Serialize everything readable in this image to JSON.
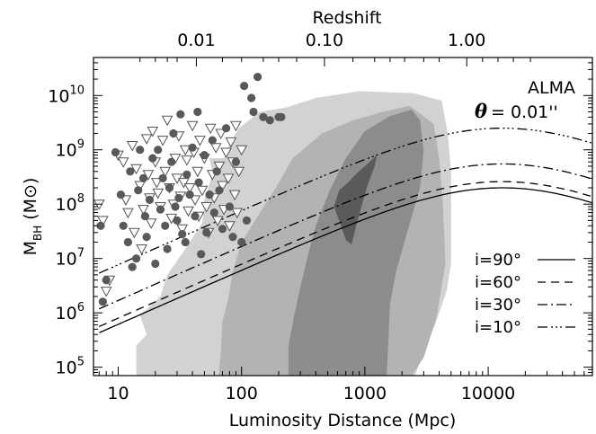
{
  "chart_data": {
    "type": "scatter",
    "title": "",
    "xlabel": "Luminosity Distance (Mpc)",
    "ylabel_main": "M",
    "ylabel_sub": "BH",
    "ylabel_unit": "(M⊙)",
    "top_axis_label": "Redshift",
    "xscale": "log",
    "yscale": "log",
    "xlim": [
      6.3,
      70000
    ],
    "ylim": [
      70000,
      50000000000
    ],
    "x_ticks": [
      {
        "value": 10,
        "label": "10"
      },
      {
        "value": 100,
        "label": "100"
      },
      {
        "value": 1000,
        "label": "1000"
      },
      {
        "value": 10000,
        "label": "10000"
      }
    ],
    "y_ticks": [
      {
        "value": 100000,
        "base": "10",
        "exp": "5"
      },
      {
        "value": 1000000,
        "base": "10",
        "exp": "6"
      },
      {
        "value": 10000000,
        "base": "10",
        "exp": "7"
      },
      {
        "value": 100000000,
        "base": "10",
        "exp": "8"
      },
      {
        "value": 1000000000,
        "base": "10",
        "exp": "9"
      },
      {
        "value": 10000000000,
        "base": "10",
        "exp": "10"
      }
    ],
    "top_ticks": [
      {
        "x_value": 43,
        "label": "0.01"
      },
      {
        "x_value": 470,
        "label": "0.10"
      },
      {
        "x_value": 6700,
        "label": "1.00"
      }
    ],
    "annotations": {
      "instrument": "ALMA",
      "theta_symbol": "θ",
      "theta_value": "= 0.01''"
    },
    "contours": [
      {
        "level": "outer",
        "color": "#d2d2d2",
        "polygon": [
          [
            14,
            60000
          ],
          [
            14,
            250000
          ],
          [
            17,
            400000
          ],
          [
            15,
            900000
          ],
          [
            22,
            2000000
          ],
          [
            25,
            5000000
          ],
          [
            35,
            15000000
          ],
          [
            48,
            45000000
          ],
          [
            50,
            120000000
          ],
          [
            58,
            350000000
          ],
          [
            55,
            700000000
          ],
          [
            72,
            700000000
          ],
          [
            80,
            1300000000
          ],
          [
            95,
            2500000000
          ],
          [
            140,
            5000000000
          ],
          [
            230,
            6000000000
          ],
          [
            400,
            9000000000
          ],
          [
            900,
            12000000000
          ],
          [
            2500,
            11000000000
          ],
          [
            4200,
            8000000000
          ],
          [
            4700,
            2000000000
          ],
          [
            5000,
            400000000
          ],
          [
            5000,
            8000000
          ],
          [
            4600,
            2500000
          ],
          [
            3700,
            600000
          ],
          [
            3000,
            200000
          ],
          [
            2500,
            60000
          ]
        ]
      },
      {
        "level": "mid",
        "color": "#b3b3b3",
        "polygon": [
          [
            65,
            60000
          ],
          [
            68,
            200000
          ],
          [
            70,
            700000
          ],
          [
            78,
            1800000
          ],
          [
            85,
            6000000
          ],
          [
            100,
            20000000
          ],
          [
            135,
            60000000
          ],
          [
            190,
            200000000
          ],
          [
            260,
            700000000
          ],
          [
            450,
            2000000000
          ],
          [
            800,
            3500000000
          ],
          [
            1400,
            5000000000
          ],
          [
            2300,
            6500000000
          ],
          [
            3600,
            3000000000
          ],
          [
            4000,
            700000000
          ],
          [
            4300,
            100000000
          ],
          [
            4500,
            8000000
          ],
          [
            3800,
            800000
          ],
          [
            3000,
            150000
          ],
          [
            2300,
            60000
          ]
        ]
      },
      {
        "level": "inner",
        "color": "#8c8c8c",
        "polygon": [
          [
            240,
            60000
          ],
          [
            240,
            250000
          ],
          [
            270,
            1000000
          ],
          [
            300,
            3000000
          ],
          [
            340,
            10000000
          ],
          [
            400,
            40000000
          ],
          [
            520,
            180000000
          ],
          [
            700,
            700000000
          ],
          [
            1000,
            2200000000
          ],
          [
            1600,
            4200000000
          ],
          [
            2400,
            5500000000
          ],
          [
            2800,
            3500000000
          ],
          [
            3000,
            1000000000
          ],
          [
            2800,
            200000000
          ],
          [
            2200,
            30000000
          ],
          [
            1800,
            6000000
          ],
          [
            1600,
            1500000
          ],
          [
            1550,
            300000
          ],
          [
            1500,
            60000
          ]
        ]
      },
      {
        "level": "core",
        "color": "#5a5a5a",
        "polygon": [
          [
            560,
            90000000
          ],
          [
            630,
            45000000
          ],
          [
            700,
            22000000
          ],
          [
            780,
            18000000
          ],
          [
            850,
            40000000
          ],
          [
            950,
            100000000
          ],
          [
            1050,
            220000000
          ],
          [
            1200,
            500000000
          ],
          [
            1250,
            800000000
          ],
          [
            1050,
            550000000
          ],
          [
            870,
            380000000
          ],
          [
            730,
            250000000
          ],
          [
            620,
            180000000
          ]
        ]
      }
    ],
    "series": [
      {
        "name": "i=90°",
        "dash": "",
        "norm": 200000000
      },
      {
        "name": "i=60°",
        "dash": "9 6",
        "norm": 260000000
      },
      {
        "name": "i=30°",
        "dash": "11 4 2 4",
        "norm": 550000000
      },
      {
        "name": "i=10°",
        "dash": "11 4 2 3 2 3 2 4",
        "norm": 2500000000
      }
    ],
    "curve_peak_x": 13000,
    "curve_x_range": [
      7,
      70000
    ],
    "points_filled": [
      [
        7.2,
        40000000
      ],
      [
        7.5,
        1600000
      ],
      [
        8,
        4000000
      ],
      [
        9.5,
        900000000
      ],
      [
        10.5,
        150000000
      ],
      [
        11,
        40000000
      ],
      [
        12,
        20000000
      ],
      [
        12.5,
        400000000
      ],
      [
        13,
        7000000
      ],
      [
        14,
        10000000
      ],
      [
        14.5,
        180000000
      ],
      [
        15,
        1000000000
      ],
      [
        16,
        300000000
      ],
      [
        16.5,
        60000000
      ],
      [
        17,
        25000000
      ],
      [
        18,
        120000000
      ],
      [
        19,
        700000000
      ],
      [
        20,
        8000000
      ],
      [
        21,
        1000000000
      ],
      [
        22,
        80000000
      ],
      [
        23,
        300000000
      ],
      [
        24,
        40000000
      ],
      [
        25,
        15000000
      ],
      [
        26,
        200000000
      ],
      [
        27,
        600000000
      ],
      [
        28,
        2000000000
      ],
      [
        29,
        90000000
      ],
      [
        30,
        50000000
      ],
      [
        31,
        130000000
      ],
      [
        32,
        4500000000
      ],
      [
        33,
        28000000
      ],
      [
        35,
        20000000
      ],
      [
        36,
        350000000
      ],
      [
        38,
        150000000
      ],
      [
        40,
        1100000000
      ],
      [
        42,
        60000000
      ],
      [
        44,
        5000000000
      ],
      [
        45,
        250000000
      ],
      [
        47,
        12000000
      ],
      [
        50,
        800000000
      ],
      [
        52,
        30000000
      ],
      [
        55,
        150000000
      ],
      [
        58,
        1500000000
      ],
      [
        60,
        70000000
      ],
      [
        63,
        400000000
      ],
      [
        66,
        180000000
      ],
      [
        70,
        35000000
      ],
      [
        75,
        2500000000
      ],
      [
        80,
        90000000
      ],
      [
        85,
        25000000
      ],
      [
        90,
        600000000
      ],
      [
        100,
        20000000
      ],
      [
        105,
        15000000000
      ],
      [
        110,
        50000000
      ],
      [
        120,
        9000000000
      ],
      [
        125,
        5000000000
      ],
      [
        135,
        22000000000
      ],
      [
        150,
        4000000000
      ],
      [
        170,
        3500000000
      ],
      [
        200,
        4000000000
      ],
      [
        210,
        4000000000
      ]
    ],
    "points_open": [
      [
        7,
        100000000
      ],
      [
        7.5,
        50000000
      ],
      [
        8,
        2500000
      ],
      [
        8.5,
        4000000
      ],
      [
        10,
        800000000
      ],
      [
        11,
        600000000
      ],
      [
        11.5,
        120000000
      ],
      [
        12,
        70000000
      ],
      [
        13,
        1200000000
      ],
      [
        13.5,
        30000000
      ],
      [
        14,
        450000000
      ],
      [
        15,
        220000000
      ],
      [
        15.5,
        15000000
      ],
      [
        16,
        80000000
      ],
      [
        17,
        1600000000
      ],
      [
        17.5,
        350000000
      ],
      [
        18,
        130000000
      ],
      [
        18.5,
        45000000
      ],
      [
        19,
        2200000000
      ],
      [
        20,
        600000000
      ],
      [
        20.5,
        250000000
      ],
      [
        21,
        160000000
      ],
      [
        22,
        90000000
      ],
      [
        23,
        1500000000
      ],
      [
        24,
        400000000
      ],
      [
        25,
        3500000000
      ],
      [
        26,
        200000000
      ],
      [
        27,
        55000000
      ],
      [
        28,
        100000000
      ],
      [
        29,
        700000000
      ],
      [
        30,
        300000000
      ],
      [
        31,
        1800000000
      ],
      [
        32,
        140000000
      ],
      [
        33,
        35000000
      ],
      [
        34,
        250000000
      ],
      [
        35,
        1000000000
      ],
      [
        36,
        650000000
      ],
      [
        37,
        75000000
      ],
      [
        38,
        200000000
      ],
      [
        40,
        2800000000
      ],
      [
        41,
        900000000
      ],
      [
        42,
        120000000
      ],
      [
        44,
        400000000
      ],
      [
        45,
        60000000
      ],
      [
        46,
        1500000000
      ],
      [
        48,
        180000000
      ],
      [
        50,
        700000000
      ],
      [
        52,
        90000000
      ],
      [
        54,
        30000000
      ],
      [
        56,
        2500000000
      ],
      [
        58,
        350000000
      ],
      [
        60,
        130000000
      ],
      [
        62,
        1100000000
      ],
      [
        64,
        50000000
      ],
      [
        66,
        500000000
      ],
      [
        68,
        2000000000
      ],
      [
        70,
        220000000
      ],
      [
        72,
        80000000
      ],
      [
        75,
        900000000
      ],
      [
        78,
        300000000
      ],
      [
        80,
        40000000
      ],
      [
        82,
        1400000000
      ],
      [
        85,
        600000000
      ],
      [
        88,
        150000000
      ],
      [
        90,
        2800000000
      ],
      [
        92,
        70000000
      ],
      [
        95,
        400000000
      ],
      [
        100,
        1000000000
      ]
    ]
  }
}
